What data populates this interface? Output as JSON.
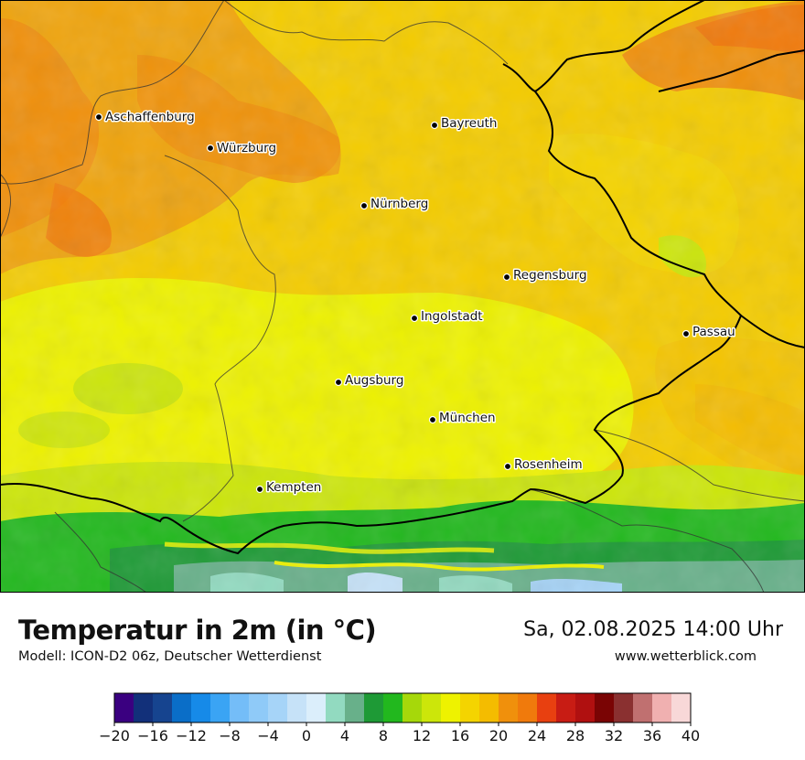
{
  "map": {
    "cities": [
      {
        "name": "Aschaffenburg"
      },
      {
        "name": "Würzburg"
      },
      {
        "name": "Bayreuth"
      },
      {
        "name": "Nürnberg"
      },
      {
        "name": "Regensburg"
      },
      {
        "name": "Ingolstadt"
      },
      {
        "name": "Passau"
      },
      {
        "name": "Augsburg"
      },
      {
        "name": "München"
      },
      {
        "name": "Rosenheim"
      },
      {
        "name": "Kempten"
      }
    ]
  },
  "header": {
    "title": "Temperatur in 2m (in °C)",
    "subtitle": "Modell: ICON-D2 06z, Deutscher Wetterdienst",
    "datetime": "Sa, 02.08.2025 14:00 Uhr",
    "website": "www.wetterblick.com"
  },
  "legend": {
    "colors": [
      "#3a0080",
      "#12307a",
      "#16448f",
      "#0a6ec8",
      "#168ae8",
      "#3aa4f4",
      "#74bdf8",
      "#8fcaf8",
      "#a6d4f8",
      "#c6e2f8",
      "#dbeefb",
      "#92dac0",
      "#68b08a",
      "#1e9a36",
      "#22b81e",
      "#a6d80a",
      "#cce60a",
      "#eef200",
      "#f4d400",
      "#f4bc00",
      "#f0900c",
      "#f07a0c",
      "#e84010",
      "#c81c14",
      "#b01010",
      "#7a0404",
      "#8a3030",
      "#c07070",
      "#f0b0b0",
      "#f8d8d8"
    ],
    "tick_labels": [
      "−20",
      "−16",
      "−12",
      "−8",
      "−4",
      "0",
      "4",
      "8",
      "12",
      "16",
      "20",
      "24",
      "28",
      "32",
      "36",
      "40"
    ],
    "range": [
      -20,
      40
    ],
    "step": 2
  }
}
